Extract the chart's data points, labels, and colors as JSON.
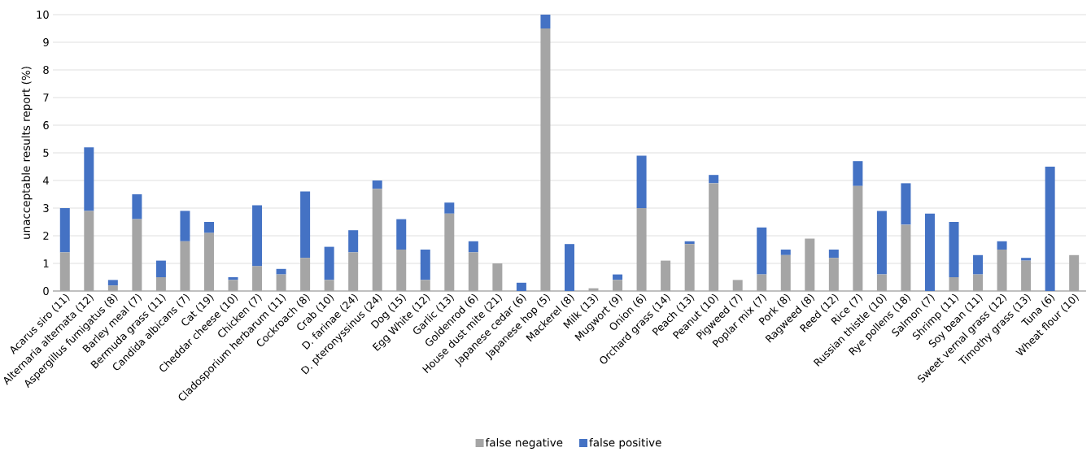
{
  "chart_data": {
    "type": "bar",
    "stacked": true,
    "ylabel": "unacceptable results report (%)",
    "categories": [
      "Acarus siro (11)",
      "Alternaria alternata (12)",
      "Aspergillus fumigatus (8)",
      "Barley meal (7)",
      "Bermuda grass (11)",
      "Candida albicans (7)",
      "Cat (19)",
      "Cheddar cheese (10)",
      "Chicken (7)",
      "Cladosporium herbarum (11)",
      "Cockroach (8)",
      "Crab (10)",
      "D. farinae (24)",
      "D. pteronyssinus (24)",
      "Dog (15)",
      "Egg White (12)",
      "Garlic (13)",
      "Goldenrod (6)",
      "House dust mite (21)",
      "Japanese cedar (6)",
      "Japanese hop (5)",
      "Mackerel (8)",
      "Milk (13)",
      "Mugwort (9)",
      "Onion (6)",
      "Orchard grass (14)",
      "Peach (13)",
      "Peanut (10)",
      "Pigweed (7)",
      "Poplar mix (7)",
      "Pork (8)",
      "Ragweed (8)",
      "Reed (12)",
      "Rice (7)",
      "Russian thistle (10)",
      "Rye pollens (18)",
      "Salmon (7)",
      "Shrimp (11)",
      "Soy bean (11)",
      "Sweet vernal grass (12)",
      "Timothy grass (13)",
      "Tuna (6)",
      "Wheat flour (10)"
    ],
    "series": [
      {
        "name": "false negative",
        "color": "#a5a5a5",
        "values": [
          1.4,
          2.9,
          0.2,
          2.6,
          0.5,
          1.8,
          2.1,
          0.4,
          0.9,
          0.6,
          1.2,
          0.4,
          1.4,
          3.7,
          1.5,
          0.4,
          2.8,
          1.4,
          1.0,
          0,
          9.5,
          0,
          0.1,
          0.4,
          3.0,
          1.1,
          1.7,
          3.9,
          0.4,
          0.6,
          1.3,
          1.9,
          1.2,
          3.8,
          0.6,
          2.4,
          0,
          0.5,
          0.6,
          1.5,
          1.1,
          0,
          1.3
        ]
      },
      {
        "name": "false positive",
        "color": "#4472c4",
        "values": [
          1.6,
          2.3,
          0.2,
          0.9,
          0.6,
          1.1,
          0.4,
          0.1,
          2.2,
          0.2,
          2.4,
          1.2,
          0.8,
          0.3,
          1.1,
          1.1,
          0.4,
          0.4,
          0,
          0.3,
          0.5,
          1.7,
          0,
          0.2,
          1.9,
          0,
          0.1,
          0.3,
          0,
          1.7,
          0.2,
          0,
          0.3,
          0.9,
          2.3,
          1.5,
          2.8,
          2.0,
          0.7,
          0.3,
          0.1,
          4.5,
          0
        ]
      }
    ],
    "ylim": [
      0,
      10
    ],
    "yticks": [
      0,
      1,
      2,
      3,
      4,
      5,
      6,
      7,
      8,
      9,
      10
    ],
    "grid": "y",
    "legend": "bottom"
  }
}
